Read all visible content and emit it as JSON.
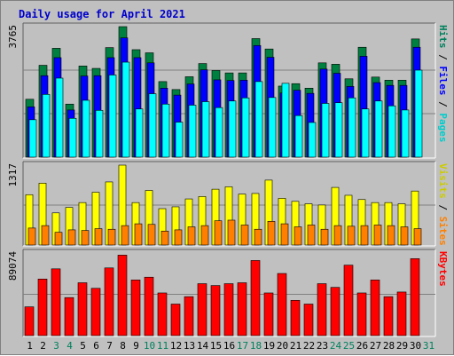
{
  "chart_data": {
    "type": "bar",
    "title": "Daily usage for April 2021",
    "colors": {
      "hits": "#00FFFF",
      "files": "#0000FF",
      "pages": "#008040",
      "visits": "#FFFF00",
      "sites": "#FF8000",
      "kbytes": "#FF0000",
      "weekend_day_label": "#00805C",
      "weekday_label": "#000000",
      "panel_bg": "#C0C0C0",
      "title": "#0000CC"
    },
    "x": [
      "1",
      "2",
      "3",
      "4",
      "5",
      "6",
      "7",
      "8",
      "9",
      "10",
      "11",
      "12",
      "13",
      "14",
      "15",
      "16",
      "17",
      "18",
      "19",
      "20",
      "21",
      "22",
      "23",
      "24",
      "25",
      "26",
      "27",
      "28",
      "29",
      "30",
      "31"
    ],
    "weekend_days": [
      "3",
      "4",
      "10",
      "11",
      "17",
      "18",
      "24",
      "25",
      "31"
    ],
    "panels": [
      {
        "name": "hits-files-pages",
        "max_label": "3765",
        "ymax": 3765,
        "legend": [
          {
            "text": "Hits",
            "color": "#00805C"
          },
          {
            "text": " / ",
            "color": "#000000"
          },
          {
            "text": "Files",
            "color": "#0000FF"
          },
          {
            "text": " / ",
            "color": "#000000"
          },
          {
            "text": "Pages",
            "color": "#00CCCC"
          }
        ],
        "series": [
          {
            "name": "Hits",
            "values": [
              1670,
              2650,
              3140,
              1530,
              2630,
              2560,
              3160,
              3765,
              3100,
              3010,
              2180,
              1950,
              2320,
              2700,
              2500,
              2430,
              2430,
              3420,
              3120,
              2050,
              2120,
              1990,
              2720,
              2680,
              2260,
              3170,
              2310,
              2220,
              2220,
              3410
            ]
          },
          {
            "name": "Files",
            "values": [
              1450,
              2350,
              2870,
              1360,
              2340,
              2350,
              2870,
              3440,
              2870,
              2720,
              1990,
              1790,
              2110,
              2520,
              2230,
              2210,
              2220,
              3220,
              2880,
              1850,
              1930,
              1840,
              2540,
              2420,
              2040,
              2910,
              2150,
              2070,
              2070,
              3170
            ]
          },
          {
            "name": "Pages",
            "values": [
              1080,
              1810,
              2280,
              1120,
              1640,
              1350,
              2370,
              2740,
              1390,
              1830,
              1530,
              1010,
              1500,
              1600,
              1430,
              1620,
              1710,
              2180,
              1720,
              2130,
              1200,
              1000,
              1550,
              1570,
              1710,
              1390,
              1620,
              1480,
              1360,
              2510
            ]
          }
        ]
      },
      {
        "name": "visits-sites",
        "max_label": "1317",
        "ymax": 1317,
        "legend": [
          {
            "text": "Visits",
            "color": "#CCCC00"
          },
          {
            "text": " / ",
            "color": "#000000"
          },
          {
            "text": "Sites",
            "color": "#FF8000"
          }
        ],
        "series": [
          {
            "name": "Visits",
            "values": [
              830,
              1020,
              530,
              620,
              700,
              870,
              1040,
              1317,
              700,
              900,
              600,
              630,
              760,
              800,
              920,
              960,
              840,
              850,
              1070,
              770,
              720,
              680,
              660,
              950,
              820,
              750,
              700,
              700,
              680,
              890
            ]
          },
          {
            "name": "Sites",
            "values": [
              280,
              320,
              210,
              250,
              240,
              270,
              260,
              320,
              350,
              340,
              230,
              250,
              300,
              320,
              400,
              410,
              330,
              260,
              390,
              350,
              300,
              330,
              260,
              320,
              310,
              320,
              330,
              320,
              300,
              270
            ]
          }
        ]
      },
      {
        "name": "kbytes",
        "max_label": "89074",
        "ymax": 89074,
        "legend": [
          {
            "text": "KBytes",
            "color": "#FF0000"
          }
        ],
        "series": [
          {
            "name": "KBytes",
            "values": [
              31000,
              61000,
              72000,
              41000,
              57000,
              51000,
              73000,
              86800,
              60000,
              63000,
              46000,
              34000,
              42000,
              56000,
              54000,
              56000,
              57000,
              81000,
              46000,
              67000,
              38000,
              34000,
              56000,
              52000,
              76000,
              46000,
              60000,
              42000,
              47000,
              83000
            ]
          }
        ]
      }
    ]
  }
}
